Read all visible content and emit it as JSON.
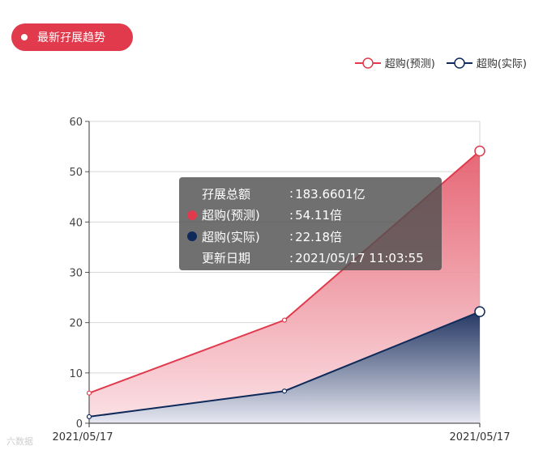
{
  "header": {
    "tag_label": "最新孖展趋势"
  },
  "watermark": "六数据",
  "colors": {
    "forecast": "#e03a4c",
    "actual": "#0e2a5a",
    "tooltip_bg": "#555555"
  },
  "tooltip": {
    "rows": [
      {
        "label": "孖展总额",
        "value": "183.6601亿",
        "bullet": ""
      },
      {
        "label": "超购(预测)",
        "value": "54.11倍",
        "bullet": "#e03a4c"
      },
      {
        "label": "超购(实际)",
        "value": "22.18倍",
        "bullet": "#0e2a5a"
      },
      {
        "label": "更新日期",
        "value": "2021/05/17 11:03:55",
        "bullet": ""
      }
    ]
  },
  "chart_data": {
    "type": "area",
    "x": [
      "2021/05/17",
      "",
      "2021/05/17"
    ],
    "x_tick_labels": [
      "2021/05/17",
      "2021/05/17"
    ],
    "series": [
      {
        "name": "超购(预测)",
        "values": [
          6,
          20.5,
          54.11
        ]
      },
      {
        "name": "超购(实际)",
        "values": [
          1.3,
          6.4,
          22.18
        ]
      }
    ],
    "ylim": [
      0,
      60
    ],
    "y_ticks": [
      0,
      10,
      20,
      30,
      40,
      50,
      60
    ],
    "grid": true,
    "legend_position": "top-right"
  }
}
